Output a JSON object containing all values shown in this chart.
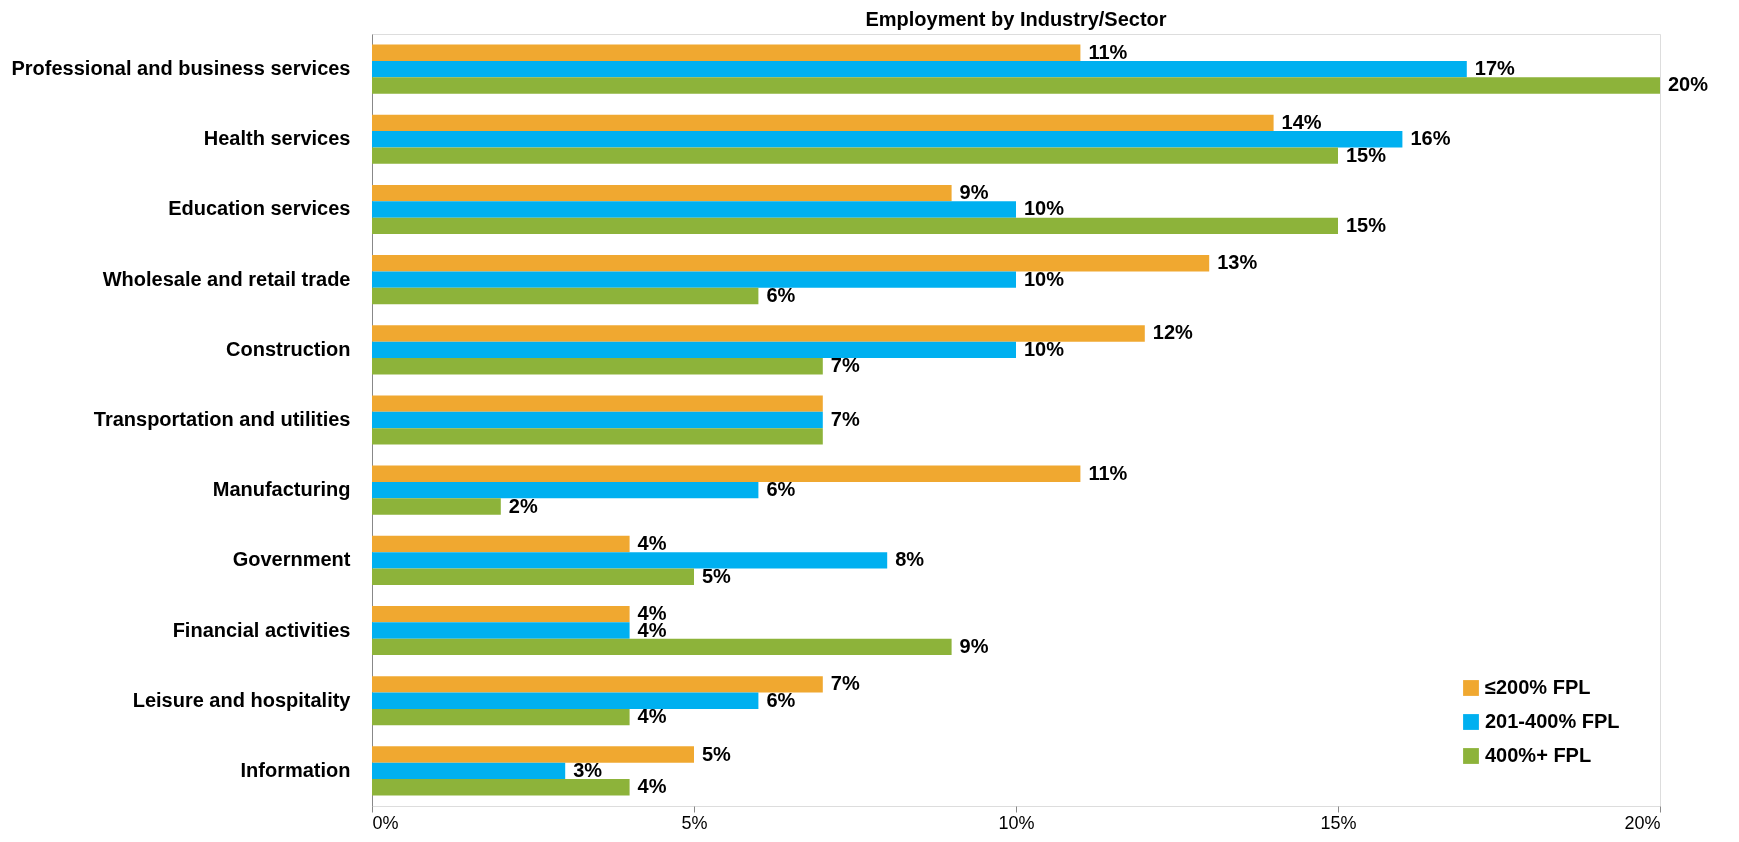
{
  "chart_data": {
    "type": "bar",
    "orientation": "horizontal",
    "title": "Employment by Industry/Sector",
    "categories": [
      "Professional and business services",
      "Health services",
      "Education services",
      "Wholesale and retail trade",
      "Construction",
      "Transportation and utilities",
      "Manufacturing",
      "Government",
      "Financial activities",
      "Leisure and hospitality",
      "Information"
    ],
    "series": [
      {
        "name": "≤200% FPL",
        "color": "#f0a830",
        "values": [
          11,
          14,
          9,
          13,
          12,
          7,
          11,
          4,
          4,
          7,
          5
        ],
        "value_labels": [
          "11%",
          "14%",
          "9%",
          "13%",
          "12%",
          null,
          "11%",
          "4%",
          "4%",
          "7%",
          "5%"
        ]
      },
      {
        "name": "201-400% FPL",
        "color": "#00b0f0",
        "values": [
          17,
          16,
          10,
          10,
          10,
          7,
          6,
          8,
          4,
          6,
          3
        ],
        "value_labels": [
          "17%",
          "16%",
          "10%",
          "10%",
          "10%",
          "7%",
          "6%",
          "8%",
          "4%",
          "6%",
          "3%"
        ]
      },
      {
        "name": "400%+ FPL",
        "color": "#8db33a",
        "values": [
          20,
          15,
          15,
          6,
          7,
          7,
          2,
          5,
          9,
          4,
          4
        ],
        "value_labels": [
          "20%",
          "15%",
          "15%",
          "6%",
          "7%",
          null,
          "2%",
          "5%",
          "9%",
          "4%",
          "4%"
        ]
      }
    ],
    "xlim": [
      0,
      20
    ],
    "xticks": [
      {
        "value": 0,
        "label": "0%"
      },
      {
        "value": 5,
        "label": "5%"
      },
      {
        "value": 10,
        "label": "10%"
      },
      {
        "value": 15,
        "label": "15%"
      },
      {
        "value": 20,
        "label": "20%"
      }
    ],
    "grid": false,
    "legend": "bottom right"
  }
}
